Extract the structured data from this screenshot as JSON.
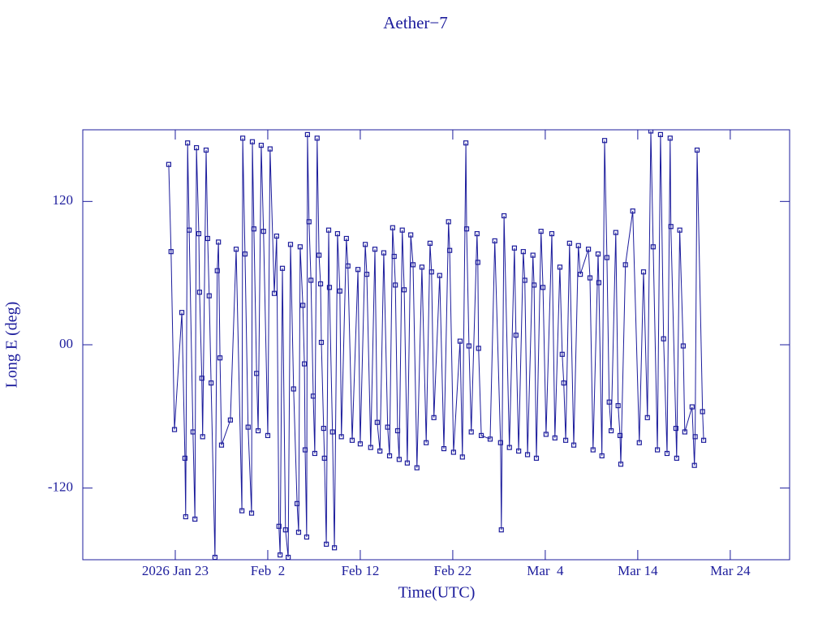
{
  "chart_data": {
    "type": "line",
    "title": "Aether−7",
    "x_label": "Time(UTC)",
    "y_label": "Long E (deg)",
    "xlim": [
      "2026-01-13T00:00",
      "2026-03-30T10:00"
    ],
    "xticks": [
      {
        "value": "2026-01-23T00:00",
        "label": "2026 Jan 23"
      },
      {
        "value": "2026-02-02T00:00",
        "label": "Feb  2"
      },
      {
        "value": "2026-02-12T00:00",
        "label": "Feb 12"
      },
      {
        "value": "2026-02-22T00:00",
        "label": "Feb 22"
      },
      {
        "value": "2026-03-04T00:00",
        "label": "Mar  4"
      },
      {
        "value": "2026-03-14T00:00",
        "label": "Mar 14"
      },
      {
        "value": "2026-03-24T00:00",
        "label": "Mar 24"
      }
    ],
    "ylim": [
      -180,
      180
    ],
    "yticks": [
      -120,
      {
        "value": 0,
        "label": "00"
      },
      120
    ],
    "x": [
      "2026-01-22T07:00",
      "2026-01-22T13:00",
      "2026-01-22T22:00",
      "2026-01-23T17:00",
      "2026-01-24T01:00",
      "2026-01-24T03:00",
      "2026-01-24T08:00",
      "2026-01-24T12:00",
      "2026-01-24T22:00",
      "2026-01-25T03:00",
      "2026-01-25T07:00",
      "2026-01-25T13:00",
      "2026-01-25T15:00",
      "2026-01-25T21:00",
      "2026-01-25T23:00",
      "2026-01-26T08:00",
      "2026-01-26T12:00",
      "2026-01-26T16:00",
      "2026-01-26T21:00",
      "2026-01-27T07:00",
      "2026-01-27T13:00",
      "2026-01-27T16:00",
      "2026-01-27T20:00",
      "2026-01-28T00:00",
      "2026-01-28T23:00",
      "2026-01-29T14:00",
      "2026-01-30T05:00",
      "2026-01-30T07:00",
      "2026-01-30T13:00",
      "2026-01-30T21:00",
      "2026-01-31T06:00",
      "2026-01-31T08:00",
      "2026-01-31T12:00",
      "2026-01-31T19:00",
      "2026-01-31T23:00",
      "2026-02-01T07:00",
      "2026-02-01T13:00",
      "2026-02-02T00:00",
      "2026-02-02T06:00",
      "2026-02-02T17:00",
      "2026-02-02T23:00",
      "2026-02-03T05:00",
      "2026-02-03T08:00",
      "2026-02-03T14:00",
      "2026-02-03T22:00",
      "2026-02-04T05:00",
      "2026-02-04T11:00",
      "2026-02-04T19:00",
      "2026-02-05T04:00",
      "2026-02-05T08:00",
      "2026-02-05T12:00",
      "2026-02-05T19:00",
      "2026-02-05T23:00",
      "2026-02-06T01:00",
      "2026-02-06T05:00",
      "2026-02-06T07:00",
      "2026-02-06T11:00",
      "2026-02-06T16:00",
      "2026-02-06T22:00",
      "2026-02-07T02:00",
      "2026-02-07T08:00",
      "2026-02-07T13:00",
      "2026-02-07T17:00",
      "2026-02-07T19:00",
      "2026-02-08T01:00",
      "2026-02-08T03:00",
      "2026-02-08T08:00",
      "2026-02-08T14:00",
      "2026-02-08T16:00",
      "2026-02-09T00:00",
      "2026-02-09T05:00",
      "2026-02-09T13:00",
      "2026-02-09T19:00",
      "2026-02-09T23:00",
      "2026-02-10T12:00",
      "2026-02-10T16:00",
      "2026-02-11T03:00",
      "2026-02-11T18:00",
      "2026-02-12T00:00",
      "2026-02-12T13:00",
      "2026-02-12T17:00",
      "2026-02-13T03:00",
      "2026-02-13T14:00",
      "2026-02-13T20:00",
      "2026-02-14T03:00",
      "2026-02-14T13:00",
      "2026-02-14T23:00",
      "2026-02-15T04:00",
      "2026-02-15T12:00",
      "2026-02-15T16:00",
      "2026-02-15T19:00",
      "2026-02-16T01:00",
      "2026-02-16T05:00",
      "2026-02-16T13:00",
      "2026-02-16T18:00",
      "2026-02-17T02:00",
      "2026-02-17T11:00",
      "2026-02-17T17:00",
      "2026-02-18T03:00",
      "2026-02-18T16:00",
      "2026-02-19T03:00",
      "2026-02-19T13:00",
      "2026-02-19T17:00",
      "2026-02-19T23:00",
      "2026-02-20T14:00",
      "2026-02-21T01:00",
      "2026-02-21T13:00",
      "2026-02-21T16:00",
      "2026-02-22T02:00",
      "2026-02-22T19:00",
      "2026-02-23T01:00",
      "2026-02-23T10:00",
      "2026-02-23T12:00",
      "2026-02-23T18:00",
      "2026-02-24T00:00",
      "2026-02-24T15:00",
      "2026-02-24T17:00",
      "2026-02-24T19:00",
      "2026-02-25T02:00",
      "2026-02-26T01:00",
      "2026-02-26T13:00",
      "2026-02-27T04:00",
      "2026-02-27T06:00",
      "2026-02-27T13:00",
      "2026-02-28T03:00",
      "2026-02-28T16:00",
      "2026-02-28T20:00",
      "2026-03-01T03:00",
      "2026-03-01T15:00",
      "2026-03-01T19:00",
      "2026-03-02T02:00",
      "2026-03-02T16:00",
      "2026-03-02T19:00",
      "2026-03-03T01:00",
      "2026-03-03T13:00",
      "2026-03-03T18:00",
      "2026-03-04T02:00",
      "2026-03-04T17:00",
      "2026-03-05T01:00",
      "2026-03-05T14:00",
      "2026-03-05T20:00",
      "2026-03-06T00:00",
      "2026-03-06T05:00",
      "2026-03-06T15:00",
      "2026-03-07T02:00",
      "2026-03-07T14:00",
      "2026-03-07T19:00",
      "2026-03-08T16:00",
      "2026-03-08T20:00",
      "2026-03-09T04:00",
      "2026-03-09T17:00",
      "2026-03-09T19:00",
      "2026-03-10T03:00",
      "2026-03-10T10:00",
      "2026-03-10T16:00",
      "2026-03-10T22:00",
      "2026-03-11T03:00",
      "2026-03-11T15:00",
      "2026-03-11T21:00",
      "2026-03-12T02:00",
      "2026-03-12T04:00",
      "2026-03-12T16:00",
      "2026-03-13T11:00",
      "2026-03-14T04:00",
      "2026-03-14T15:00",
      "2026-03-15T01:00",
      "2026-03-15T10:00",
      "2026-03-15T16:00",
      "2026-03-16T03:00",
      "2026-03-16T11:00",
      "2026-03-16T19:00",
      "2026-03-17T04:00",
      "2026-03-17T12:00",
      "2026-03-17T14:00",
      "2026-03-18T03:00",
      "2026-03-18T05:00",
      "2026-03-18T13:00",
      "2026-03-18T22:00",
      "2026-03-19T02:00",
      "2026-03-19T21:00",
      "2026-03-20T03:00",
      "2026-03-20T05:00",
      "2026-03-20T10:00",
      "2026-03-21T00:00",
      "2026-03-21T03:00"
    ],
    "series": [
      {
        "color": "#1c1c9c",
        "values": [
          151,
          78,
          -71,
          27,
          -95,
          -144,
          169,
          96,
          -73,
          -146,
          165,
          93,
          44,
          -28,
          -77,
          163,
          89,
          41,
          -32,
          -178,
          62,
          86,
          -11,
          -84,
          -63,
          80,
          -139,
          173,
          76,
          -69,
          -141,
          170,
          97,
          -24,
          -72,
          167,
          95,
          -76,
          164,
          43,
          91,
          -152,
          -176,
          64,
          -155,
          -178,
          84,
          -37,
          -133,
          -157,
          82,
          33,
          -16,
          -88,
          -161,
          176,
          103,
          54,
          -43,
          -91,
          173,
          75,
          51,
          2,
          -70,
          -95,
          -167,
          96,
          48,
          -73,
          -170,
          93,
          45,
          -77,
          89,
          66,
          -80,
          63,
          -83,
          84,
          59,
          -86,
          80,
          -65,
          -89,
          77,
          -69,
          -93,
          98,
          74,
          50,
          -72,
          -96,
          96,
          46,
          -99,
          92,
          67,
          -103,
          65,
          -82,
          85,
          61,
          -61,
          58,
          -87,
          103,
          79,
          -90,
          3,
          -94,
          169,
          97,
          -1,
          -73,
          93,
          69,
          -3,
          -76,
          -79,
          87,
          -82,
          -155,
          108,
          -86,
          81,
          8,
          -89,
          78,
          54,
          -92,
          75,
          50,
          -95,
          95,
          48,
          -75,
          93,
          -78,
          65,
          -8,
          -32,
          -80,
          85,
          -84,
          83,
          59,
          80,
          56,
          -88,
          76,
          52,
          -93,
          171,
          73,
          -48,
          -72,
          94,
          -51,
          -76,
          -100,
          67,
          112,
          -82,
          61,
          -61,
          179,
          82,
          -88,
          176,
          5,
          -91,
          173,
          99,
          -70,
          -95,
          96,
          -1,
          -73,
          -52,
          -101,
          -77,
          163,
          -56,
          -80
        ]
      }
    ]
  }
}
